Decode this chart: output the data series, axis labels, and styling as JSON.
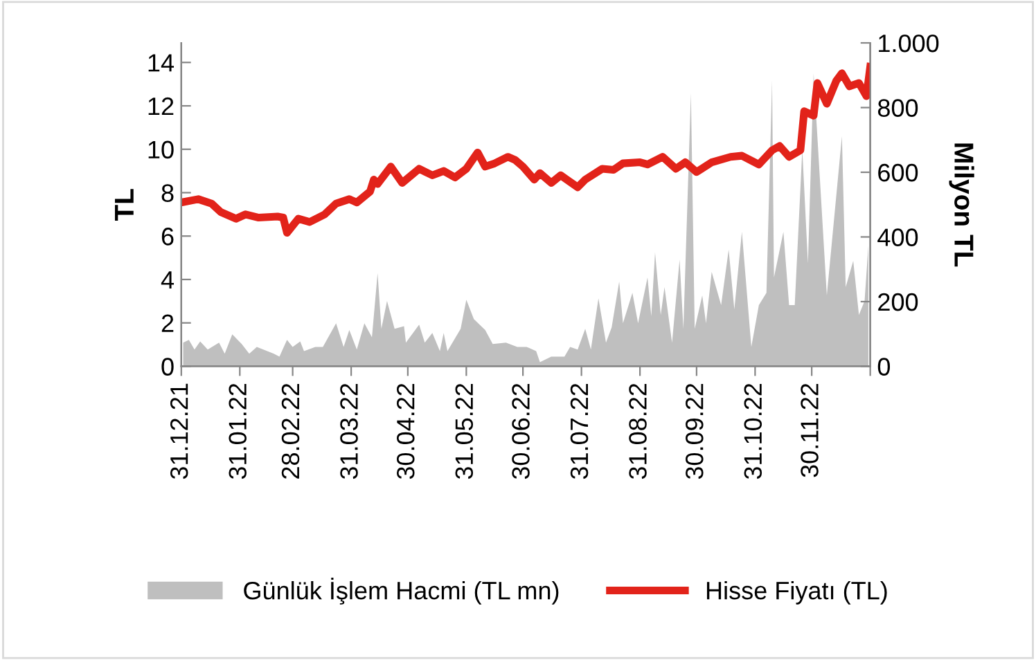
{
  "chart_data": {
    "type": "line",
    "ylabel": "TL",
    "y2label": "Milyon TL",
    "xlim": [
      "2021-12-31",
      "2022-12-31"
    ],
    "xticks": [
      {
        "value": "2021-12-31",
        "label": "31.12.21"
      },
      {
        "value": "2022-01-31",
        "label": "31.01.22"
      },
      {
        "value": "2022-02-28",
        "label": "28.02.22"
      },
      {
        "value": "2022-03-31",
        "label": "31.03.22"
      },
      {
        "value": "2022-04-30",
        "label": "30.04.22"
      },
      {
        "value": "2022-05-31",
        "label": "31.05.22"
      },
      {
        "value": "2022-06-30",
        "label": "30.06.22"
      },
      {
        "value": "2022-07-31",
        "label": "31.07.22"
      },
      {
        "value": "2022-08-31",
        "label": "31.08.22"
      },
      {
        "value": "2022-09-30",
        "label": "30.09.22"
      },
      {
        "value": "2022-10-31",
        "label": "31.10.22"
      },
      {
        "value": "2022-11-30",
        "label": "30.11.22"
      },
      {
        "value": "2022-12-31",
        "label": null
      }
    ],
    "ylim": [
      0,
      14.9
    ],
    "yticks": [
      0,
      2,
      4,
      6,
      8,
      10,
      12,
      14
    ],
    "y2lim": [
      0,
      1000
    ],
    "y2ticks": [
      0,
      200,
      400,
      600,
      800,
      {
        "value": 1000,
        "label": "1.000"
      }
    ],
    "grid": false,
    "legend": "bottom",
    "marker": "none",
    "line_style": "solid",
    "series": [
      {
        "name": "Günlük İşlem Hacmi (TL mn)",
        "type": "area",
        "axis": "y2",
        "color": "#bfbfbf",
        "x": [
          "2022-01-01",
          "2022-01-04",
          "2022-01-07",
          "2022-01-10",
          "2022-01-14",
          "2022-01-20",
          "2022-01-23",
          "2022-01-27",
          "2022-02-01",
          "2022-02-05",
          "2022-02-09",
          "2022-02-18",
          "2022-02-21",
          "2022-02-25",
          "2022-02-28",
          "2022-03-04",
          "2022-03-06",
          "2022-03-12",
          "2022-03-16",
          "2022-03-23",
          "2022-03-27",
          "2022-03-30",
          "2022-04-03",
          "2022-04-07",
          "2022-04-11",
          "2022-04-14",
          "2022-04-16",
          "2022-04-19",
          "2022-04-23",
          "2022-04-28",
          "2022-04-29",
          "2022-05-06",
          "2022-05-09",
          "2022-05-13",
          "2022-05-17",
          "2022-05-19",
          "2022-05-21",
          "2022-05-28",
          "2022-05-31",
          "2022-06-04",
          "2022-06-10",
          "2022-06-14",
          "2022-06-21",
          "2022-06-27",
          "2022-07-02",
          "2022-07-07",
          "2022-07-09",
          "2022-07-15",
          "2022-07-22",
          "2022-07-25",
          "2022-07-29",
          "2022-08-02",
          "2022-08-05",
          "2022-08-09",
          "2022-08-13",
          "2022-08-16",
          "2022-08-20",
          "2022-08-22",
          "2022-08-27",
          "2022-08-30",
          "2022-09-04",
          "2022-09-06",
          "2022-09-08",
          "2022-09-11",
          "2022-09-13",
          "2022-09-17",
          "2022-09-21",
          "2022-09-23",
          "2022-09-27",
          "2022-09-29",
          "2022-10-03",
          "2022-10-05",
          "2022-10-08",
          "2022-10-13",
          "2022-10-17",
          "2022-10-20",
          "2022-10-24",
          "2022-10-29",
          "2022-11-02",
          "2022-11-06",
          "2022-11-09",
          "2022-11-10",
          "2022-11-15",
          "2022-11-18",
          "2022-11-21",
          "2022-11-25",
          "2022-11-28",
          "2022-12-01",
          "2022-12-08",
          "2022-12-16",
          "2022-12-18",
          "2022-12-22",
          "2022-12-25",
          "2022-12-28",
          "2022-12-30"
        ],
        "values": [
          73,
          82,
          52,
          77,
          52,
          73,
          39,
          99,
          69,
          39,
          60,
          39,
          30,
          82,
          60,
          77,
          47,
          60,
          60,
          133,
          60,
          112,
          52,
          133,
          90,
          288,
          116,
          202,
          116,
          124,
          73,
          129,
          73,
          103,
          47,
          103,
          47,
          116,
          206,
          146,
          112,
          69,
          73,
          60,
          60,
          47,
          13,
          30,
          30,
          60,
          52,
          116,
          52,
          210,
          73,
          120,
          262,
          133,
          227,
          133,
          275,
          155,
          352,
          159,
          245,
          73,
          330,
          116,
          845,
          116,
          219,
          133,
          292,
          189,
          361,
          176,
          416,
          60,
          189,
          227,
          884,
          275,
          416,
          189,
          189,
          670,
          318,
          906,
          219,
          712,
          245,
          326,
          159,
          202,
          373
        ]
      },
      {
        "name": "Hisse Fiyatı (TL)",
        "color": "#e2231a",
        "x": [
          "2021-12-31",
          "2022-01-09",
          "2022-01-16",
          "2022-01-21",
          "2022-01-29",
          "2022-02-03",
          "2022-02-10",
          "2022-02-20",
          "2022-02-23",
          "2022-02-25",
          "2022-03-03",
          "2022-03-09",
          "2022-03-17",
          "2022-03-23",
          "2022-03-30",
          "2022-04-03",
          "2022-04-10",
          "2022-04-12",
          "2022-04-14",
          "2022-04-21",
          "2022-04-27",
          "2022-05-06",
          "2022-05-13",
          "2022-05-19",
          "2022-05-25",
          "2022-05-31",
          "2022-06-06",
          "2022-06-10",
          "2022-06-15",
          "2022-06-22",
          "2022-06-26",
          "2022-06-30",
          "2022-07-06",
          "2022-07-09",
          "2022-07-15",
          "2022-07-20",
          "2022-07-29",
          "2022-08-02",
          "2022-08-11",
          "2022-08-17",
          "2022-08-22",
          "2022-08-31",
          "2022-09-04",
          "2022-09-12",
          "2022-09-19",
          "2022-09-24",
          "2022-09-30",
          "2022-10-08",
          "2022-10-18",
          "2022-10-24",
          "2022-11-02",
          "2022-11-09",
          "2022-11-13",
          "2022-11-18",
          "2022-11-24",
          "2022-11-26",
          "2022-12-01",
          "2022-12-03",
          "2022-12-08",
          "2022-12-13",
          "2022-12-16",
          "2022-12-20",
          "2022-12-25",
          "2022-12-29",
          "2022-12-31"
        ],
        "values": [
          7.55,
          7.7,
          7.5,
          7.1,
          6.8,
          7.0,
          6.85,
          6.9,
          6.85,
          6.15,
          6.8,
          6.65,
          7.0,
          7.5,
          7.7,
          7.55,
          8.05,
          8.6,
          8.4,
          9.2,
          8.45,
          9.1,
          8.8,
          9.0,
          8.7,
          9.1,
          9.85,
          9.2,
          9.35,
          9.65,
          9.5,
          9.2,
          8.6,
          8.9,
          8.45,
          8.8,
          8.25,
          8.6,
          9.1,
          9.05,
          9.35,
          9.4,
          9.3,
          9.65,
          9.1,
          9.4,
          8.95,
          9.4,
          9.65,
          9.7,
          9.3,
          9.95,
          10.15,
          9.65,
          9.95,
          11.75,
          11.55,
          13.05,
          12.1,
          13.15,
          13.5,
          12.9,
          13.05,
          12.45,
          13.8
        ]
      }
    ]
  }
}
